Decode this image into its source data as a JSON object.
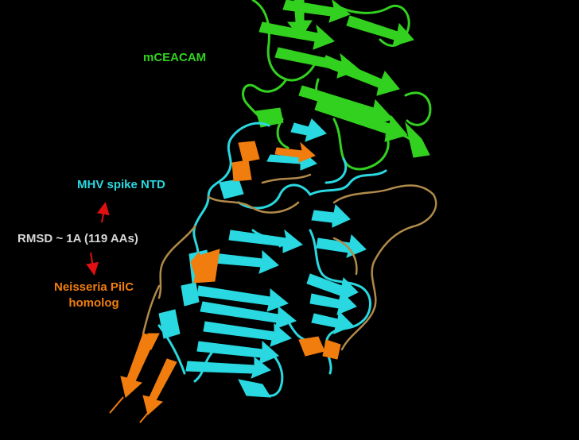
{
  "labels": {
    "ceacam": "mCEACAM",
    "mhv": "MHV spike NTD",
    "rmsd": "RMSD ~ 1A (119 AAs)",
    "neisseria_line1": "Neisseria PilC",
    "neisseria_line2": "homolog"
  },
  "colors": {
    "background": "#000000",
    "ceacam": "#33d11f",
    "mhv": "#29d8e0",
    "neisseria": "#f07d0e",
    "rmsd": "#d6d6d6",
    "arrow": "#e01010"
  }
}
